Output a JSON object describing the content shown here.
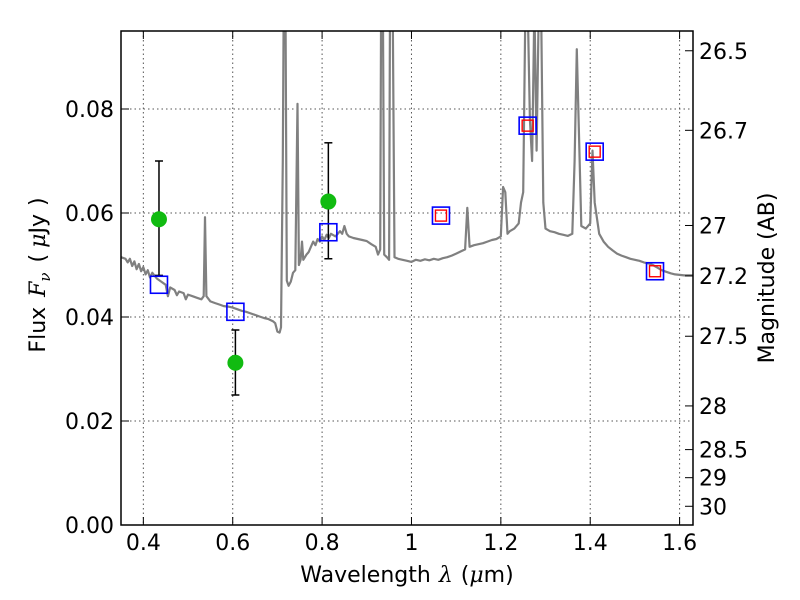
{
  "chart_data": {
    "type": "scatter",
    "title": "",
    "xlabel": {
      "prefix": "Wavelength",
      "symbol": "λ",
      "unit_open": "(",
      "unit_symbol": "μ",
      "unit_rest": "m)"
    },
    "ylabel": {
      "prefix": "Flux",
      "symbol": "F",
      "subscript": "ν",
      "unit_open": "(",
      "unit_symbol": "μ",
      "unit_rest": "Jy",
      "unit_close": ")"
    },
    "y2label": "Magnitude (AB)",
    "xlim": [
      0.35,
      1.63
    ],
    "ylim": [
      0.0,
      0.095
    ],
    "grid": true,
    "x_ticks": [
      {
        "value": 0.4,
        "label": "0.4"
      },
      {
        "value": 0.6,
        "label": "0.6"
      },
      {
        "value": 0.8,
        "label": "0.8"
      },
      {
        "value": 1.0,
        "label": "1"
      },
      {
        "value": 1.2,
        "label": "1.2"
      },
      {
        "value": 1.4,
        "label": "1.4"
      },
      {
        "value": 1.6,
        "label": "1.6"
      }
    ],
    "y_ticks": [
      {
        "value": 0.0,
        "label": "0.00"
      },
      {
        "value": 0.02,
        "label": "0.02"
      },
      {
        "value": 0.04,
        "label": "0.04"
      },
      {
        "value": 0.06,
        "label": "0.06"
      },
      {
        "value": 0.08,
        "label": "0.08"
      }
    ],
    "y2_ticks": [
      {
        "label": "26.5",
        "flux": 0.0912
      },
      {
        "label": "26.7",
        "flux": 0.0759
      },
      {
        "label": "27",
        "flux": 0.0576
      },
      {
        "label": "27.2",
        "flux": 0.0479
      },
      {
        "label": "27.5",
        "flux": 0.0363
      },
      {
        "label": "28",
        "flux": 0.0229
      },
      {
        "label": "28.5",
        "flux": 0.0145
      },
      {
        "label": "29",
        "flux": 0.0091
      },
      {
        "label": "30",
        "flux": 0.0036
      }
    ],
    "colors": {
      "spectrum": "#808080",
      "observed": "#11bb11",
      "error_bar": "#000000",
      "model_box": "#0000ff",
      "inner_box": "#ff0000",
      "grid": "#555555"
    },
    "series": [
      {
        "kind": "model-spectrum",
        "points": [
          [
            0.35,
            0.0515
          ],
          [
            0.36,
            0.0512
          ],
          [
            0.365,
            0.0505
          ],
          [
            0.37,
            0.0512
          ],
          [
            0.375,
            0.0498
          ],
          [
            0.38,
            0.0507
          ],
          [
            0.385,
            0.0492
          ],
          [
            0.39,
            0.0502
          ],
          [
            0.395,
            0.0488
          ],
          [
            0.4,
            0.0496
          ],
          [
            0.405,
            0.0482
          ],
          [
            0.41,
            0.049
          ],
          [
            0.415,
            0.0476
          ],
          [
            0.42,
            0.0485
          ],
          [
            0.43,
            0.0474
          ],
          [
            0.44,
            0.0468
          ],
          [
            0.45,
            0.0462
          ],
          [
            0.455,
            0.044
          ],
          [
            0.46,
            0.0457
          ],
          [
            0.47,
            0.0452
          ],
          [
            0.475,
            0.0442
          ],
          [
            0.48,
            0.0449
          ],
          [
            0.49,
            0.0446
          ],
          [
            0.495,
            0.0434
          ],
          [
            0.5,
            0.0443
          ],
          [
            0.51,
            0.044
          ],
          [
            0.52,
            0.0437
          ],
          [
            0.53,
            0.0434
          ],
          [
            0.535,
            0.044
          ],
          [
            0.538,
            0.0592
          ],
          [
            0.541,
            0.044
          ],
          [
            0.55,
            0.043
          ],
          [
            0.56,
            0.0427
          ],
          [
            0.57,
            0.0424
          ],
          [
            0.58,
            0.0421
          ],
          [
            0.59,
            0.042
          ],
          [
            0.6,
            0.0418
          ],
          [
            0.61,
            0.0415
          ],
          [
            0.62,
            0.0412
          ],
          [
            0.63,
            0.041
          ],
          [
            0.64,
            0.0407
          ],
          [
            0.65,
            0.0404
          ],
          [
            0.66,
            0.0401
          ],
          [
            0.67,
            0.0398
          ],
          [
            0.68,
            0.0396
          ],
          [
            0.69,
            0.0392
          ],
          [
            0.695,
            0.0388
          ],
          [
            0.7,
            0.0372
          ],
          [
            0.705,
            0.037
          ],
          [
            0.708,
            0.038
          ],
          [
            0.712,
            0.07
          ],
          [
            0.714,
            0.1
          ],
          [
            0.718,
            0.1
          ],
          [
            0.721,
            0.047
          ],
          [
            0.725,
            0.046
          ],
          [
            0.73,
            0.0468
          ],
          [
            0.735,
            0.0485
          ],
          [
            0.74,
            0.049
          ],
          [
            0.745,
            0.081
          ],
          [
            0.748,
            0.05
          ],
          [
            0.752,
            0.051
          ],
          [
            0.755,
            0.0545
          ],
          [
            0.758,
            0.051
          ],
          [
            0.765,
            0.052
          ],
          [
            0.77,
            0.0525
          ],
          [
            0.775,
            0.0535
          ],
          [
            0.78,
            0.0545
          ],
          [
            0.785,
            0.0538
          ],
          [
            0.79,
            0.055
          ],
          [
            0.795,
            0.0545
          ],
          [
            0.8,
            0.0555
          ],
          [
            0.805,
            0.0548
          ],
          [
            0.81,
            0.0558
          ],
          [
            0.815,
            0.0552
          ],
          [
            0.82,
            0.056
          ],
          [
            0.83,
            0.0555
          ],
          [
            0.84,
            0.0565
          ],
          [
            0.845,
            0.056
          ],
          [
            0.85,
            0.0575
          ],
          [
            0.855,
            0.056
          ],
          [
            0.86,
            0.0555
          ],
          [
            0.87,
            0.0552
          ],
          [
            0.88,
            0.055
          ],
          [
            0.89,
            0.0548
          ],
          [
            0.9,
            0.0546
          ],
          [
            0.91,
            0.054
          ],
          [
            0.92,
            0.0535
          ],
          [
            0.925,
            0.052
          ],
          [
            0.93,
            0.053
          ],
          [
            0.932,
            0.1
          ],
          [
            0.936,
            0.1
          ],
          [
            0.939,
            0.052
          ],
          [
            0.945,
            0.0515
          ],
          [
            0.95,
            0.051
          ],
          [
            0.952,
            0.1
          ],
          [
            0.958,
            0.1
          ],
          [
            0.962,
            0.0515
          ],
          [
            0.97,
            0.0512
          ],
          [
            0.98,
            0.051
          ],
          [
            0.99,
            0.0508
          ],
          [
            1.0,
            0.0506
          ],
          [
            1.01,
            0.051
          ],
          [
            1.02,
            0.0508
          ],
          [
            1.03,
            0.0511
          ],
          [
            1.04,
            0.0509
          ],
          [
            1.05,
            0.0512
          ],
          [
            1.06,
            0.051
          ],
          [
            1.07,
            0.0513
          ],
          [
            1.08,
            0.0515
          ],
          [
            1.09,
            0.0518
          ],
          [
            1.1,
            0.0522
          ],
          [
            1.11,
            0.0526
          ],
          [
            1.12,
            0.053
          ],
          [
            1.125,
            0.061
          ],
          [
            1.13,
            0.0535
          ],
          [
            1.14,
            0.0538
          ],
          [
            1.15,
            0.054
          ],
          [
            1.16,
            0.0542
          ],
          [
            1.17,
            0.0545
          ],
          [
            1.18,
            0.0548
          ],
          [
            1.19,
            0.055
          ],
          [
            1.2,
            0.0555
          ],
          [
            1.205,
            0.065
          ],
          [
            1.21,
            0.064
          ],
          [
            1.215,
            0.056
          ],
          [
            1.22,
            0.0565
          ],
          [
            1.23,
            0.057
          ],
          [
            1.24,
            0.058
          ],
          [
            1.245,
            0.062
          ],
          [
            1.25,
            0.064
          ],
          [
            1.255,
            0.1
          ],
          [
            1.26,
            0.1
          ],
          [
            1.265,
            0.078
          ],
          [
            1.27,
            0.07
          ],
          [
            1.275,
            0.1
          ],
          [
            1.28,
            0.072
          ],
          [
            1.285,
            0.1
          ],
          [
            1.29,
            0.1
          ],
          [
            1.295,
            0.062
          ],
          [
            1.3,
            0.057
          ],
          [
            1.31,
            0.0565
          ],
          [
            1.32,
            0.0563
          ],
          [
            1.33,
            0.056
          ],
          [
            1.34,
            0.0558
          ],
          [
            1.35,
            0.0556
          ],
          [
            1.36,
            0.056
          ],
          [
            1.365,
            0.07
          ],
          [
            1.37,
            0.0915
          ],
          [
            1.375,
            0.075
          ],
          [
            1.38,
            0.0575
          ],
          [
            1.39,
            0.057
          ],
          [
            1.4,
            0.058
          ],
          [
            1.405,
            0.072
          ],
          [
            1.41,
            0.062
          ],
          [
            1.42,
            0.056
          ],
          [
            1.43,
            0.0545
          ],
          [
            1.44,
            0.0535
          ],
          [
            1.45,
            0.0528
          ],
          [
            1.46,
            0.0522
          ],
          [
            1.47,
            0.0518
          ],
          [
            1.48,
            0.0515
          ],
          [
            1.49,
            0.0512
          ],
          [
            1.5,
            0.051
          ],
          [
            1.51,
            0.0508
          ],
          [
            1.52,
            0.0505
          ],
          [
            1.53,
            0.0503
          ],
          [
            1.54,
            0.05
          ],
          [
            1.55,
            0.0495
          ],
          [
            1.56,
            0.049
          ],
          [
            1.57,
            0.0487
          ],
          [
            1.58,
            0.0484
          ],
          [
            1.59,
            0.0482
          ],
          [
            1.6,
            0.0481
          ],
          [
            1.61,
            0.048
          ],
          [
            1.62,
            0.048
          ],
          [
            1.63,
            0.048
          ]
        ]
      },
      {
        "kind": "observed",
        "points": [
          {
            "x": 0.435,
            "y": 0.0588,
            "err_low": 0.048,
            "err_high": 0.07
          },
          {
            "x": 0.606,
            "y": 0.0312,
            "err_low": 0.025,
            "err_high": 0.0375
          },
          {
            "x": 0.814,
            "y": 0.0622,
            "err_low": 0.0512,
            "err_high": 0.0735
          }
        ]
      },
      {
        "kind": "model-photometry",
        "points": [
          {
            "x": 0.435,
            "y": 0.0462
          },
          {
            "x": 0.606,
            "y": 0.041
          },
          {
            "x": 0.814,
            "y": 0.0563
          },
          {
            "x": 1.066,
            "y": 0.0595
          },
          {
            "x": 1.26,
            "y": 0.0768
          },
          {
            "x": 1.41,
            "y": 0.0718
          },
          {
            "x": 1.545,
            "y": 0.0488
          }
        ]
      },
      {
        "kind": "model-photometry-inner",
        "points": [
          {
            "x": 1.066,
            "y": 0.0595
          },
          {
            "x": 1.26,
            "y": 0.0768
          },
          {
            "x": 1.41,
            "y": 0.0718
          },
          {
            "x": 1.545,
            "y": 0.0488
          }
        ]
      }
    ]
  }
}
